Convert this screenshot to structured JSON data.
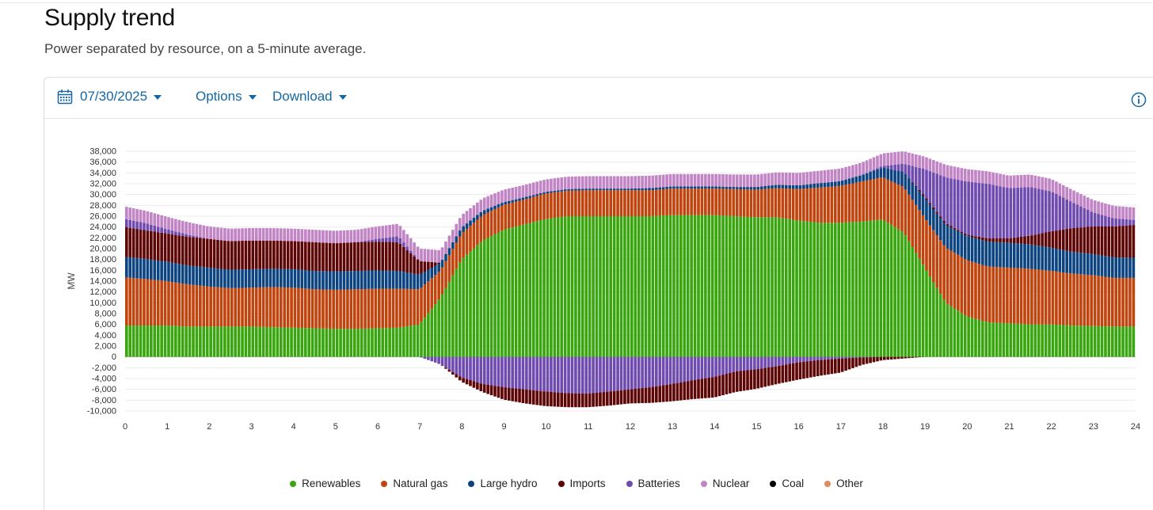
{
  "header": {
    "title": "Supply trend",
    "subtitle": "Power separated by resource, on a 5-minute average."
  },
  "toolbar": {
    "date": "07/30/2025",
    "options_label": "Options",
    "download_label": "Download",
    "calendar_icon": "calendar-icon",
    "info_icon": "info-icon",
    "accent": "#1367a6"
  },
  "chart_data": {
    "type": "bar",
    "stacked": true,
    "title": "",
    "xlabel": "",
    "ylabel": "MW",
    "xlim": [
      0,
      24
    ],
    "ylim": [
      -10000,
      38000
    ],
    "x_ticks": [
      "0",
      "1",
      "2",
      "3",
      "4",
      "5",
      "6",
      "7",
      "8",
      "9",
      "10",
      "11",
      "12",
      "13",
      "14",
      "15",
      "16",
      "17",
      "18",
      "19",
      "20",
      "21",
      "22",
      "23",
      "24"
    ],
    "y_ticks": [
      "-10,000",
      "-8,000",
      "-6,000",
      "-4,000",
      "-2,000",
      "0",
      "2,000",
      "4,000",
      "6,000",
      "8,000",
      "10,000",
      "12,000",
      "14,000",
      "16,000",
      "18,000",
      "20,000",
      "22,000",
      "24,000",
      "26,000",
      "28,000",
      "30,000",
      "32,000",
      "34,000",
      "36,000",
      "38,000"
    ],
    "grid": true,
    "legend_position": "bottom",
    "x": [
      0,
      0.5,
      1,
      1.5,
      2,
      2.5,
      3,
      3.5,
      4,
      4.5,
      5,
      5.5,
      6,
      6.5,
      7,
      7.5,
      8,
      8.5,
      9,
      9.5,
      10,
      10.5,
      11,
      11.5,
      12,
      12.5,
      13,
      13.5,
      14,
      14.5,
      15,
      15.5,
      16,
      16.5,
      17,
      17.5,
      18,
      18.5,
      19,
      19.5,
      20,
      20.5,
      21,
      21.5,
      22,
      22.5,
      23,
      23.5,
      24
    ],
    "series": [
      {
        "name": "Renewables",
        "color": "#3aa60f",
        "values": [
          5800,
          5800,
          5800,
          5600,
          5600,
          5600,
          5600,
          5500,
          5400,
          5300,
          5200,
          5200,
          5300,
          5400,
          6000,
          11000,
          18000,
          21500,
          23500,
          24500,
          25500,
          26000,
          26000,
          26000,
          26000,
          26000,
          26200,
          26200,
          26200,
          26000,
          25800,
          25800,
          25200,
          24800,
          24800,
          25000,
          25400,
          23000,
          16500,
          10000,
          7500,
          6400,
          6200,
          6000,
          6000,
          5800,
          5700,
          5600,
          5600
        ]
      },
      {
        "name": "Natural gas",
        "color": "#c0440d",
        "values": [
          8900,
          8600,
          8200,
          7800,
          7400,
          7100,
          7200,
          7400,
          7400,
          7200,
          7200,
          7300,
          7300,
          7200,
          6500,
          5000,
          4800,
          4700,
          4600,
          4600,
          4700,
          4700,
          4800,
          4800,
          4800,
          4800,
          4900,
          4900,
          4900,
          5000,
          5100,
          5400,
          5800,
          6500,
          6800,
          7400,
          7800,
          8400,
          9200,
          10200,
          10400,
          10300,
          10300,
          10300,
          9900,
          9600,
          9400,
          9000,
          9000
        ]
      },
      {
        "name": "Large hydro",
        "color": "#0b4480",
        "values": [
          3800,
          3700,
          3600,
          3500,
          3500,
          3400,
          3400,
          3400,
          3400,
          3400,
          3400,
          3400,
          3400,
          3300,
          2700,
          1400,
          1100,
          800,
          500,
          400,
          300,
          300,
          300,
          300,
          300,
          400,
          400,
          400,
          400,
          400,
          500,
          600,
          700,
          800,
          900,
          1200,
          1800,
          2800,
          3700,
          4200,
          4500,
          4600,
          4600,
          4500,
          4300,
          4000,
          3900,
          3800,
          3700
        ]
      },
      {
        "name": "Imports",
        "color": "#5e0505",
        "values": [
          5500,
          5300,
          5200,
          5300,
          5300,
          5300,
          5300,
          5200,
          5200,
          5300,
          5200,
          5300,
          5300,
          5300,
          2500,
          0,
          0,
          0,
          0,
          0,
          0,
          0,
          0,
          0,
          0,
          0,
          0,
          0,
          0,
          0,
          0,
          0,
          0,
          0,
          0,
          0,
          0,
          0,
          300,
          300,
          200,
          600,
          800,
          1600,
          3000,
          4400,
          5100,
          5700,
          6100
        ]
      },
      {
        "name": "Batteries",
        "color": "#6f4bb0",
        "values": [
          1500,
          1300,
          800,
          400,
          0,
          0,
          0,
          0,
          0,
          0,
          0,
          0,
          500,
          1100,
          0,
          0,
          0,
          0,
          0,
          0,
          0,
          0,
          0,
          0,
          0,
          0,
          0,
          0,
          0,
          0,
          0,
          0,
          0,
          0,
          0,
          0,
          300,
          1500,
          5000,
          8500,
          9800,
          10100,
          9300,
          9000,
          7400,
          4800,
          2600,
          1500,
          900
        ]
      },
      {
        "name": "Nuclear",
        "color": "#c184c4",
        "values": [
          2300,
          2300,
          2300,
          2300,
          2300,
          2300,
          2300,
          2300,
          2300,
          2300,
          2300,
          2300,
          2300,
          2300,
          2300,
          2300,
          2300,
          2300,
          2300,
          2300,
          2300,
          2300,
          2300,
          2300,
          2300,
          2300,
          2300,
          2300,
          2300,
          2300,
          2300,
          2300,
          2300,
          2300,
          2300,
          2300,
          2300,
          2300,
          2300,
          2300,
          2300,
          2300,
          2300,
          2300,
          2300,
          2300,
          2300,
          2300,
          2300
        ]
      },
      {
        "name": "Coal",
        "color": "#000000",
        "values": [
          0,
          0,
          0,
          0,
          0,
          0,
          0,
          0,
          0,
          0,
          0,
          0,
          0,
          0,
          0,
          0,
          0,
          0,
          0,
          0,
          0,
          0,
          0,
          0,
          0,
          0,
          0,
          0,
          0,
          0,
          0,
          0,
          0,
          0,
          0,
          0,
          0,
          0,
          0,
          0,
          0,
          0,
          0,
          0,
          0,
          0,
          0,
          0,
          0
        ]
      },
      {
        "name": "Other",
        "color": "#e08a5e",
        "values": [
          0,
          0,
          0,
          0,
          0,
          0,
          0,
          0,
          0,
          0,
          0,
          0,
          0,
          0,
          0,
          0,
          0,
          0,
          0,
          0,
          0,
          0,
          0,
          0,
          0,
          0,
          0,
          0,
          0,
          0,
          0,
          0,
          0,
          0,
          0,
          0,
          0,
          0,
          0,
          0,
          0,
          0,
          0,
          0,
          0,
          0,
          0,
          0,
          0
        ]
      }
    ],
    "negative_series": [
      {
        "name": "Batteries",
        "color": "#6f4bb0",
        "values": [
          0,
          0,
          0,
          0,
          0,
          0,
          0,
          0,
          0,
          0,
          0,
          0,
          0,
          0,
          0,
          -1400,
          -3800,
          -5000,
          -5600,
          -6000,
          -6400,
          -6700,
          -6800,
          -6400,
          -6000,
          -5600,
          -5000,
          -4300,
          -3700,
          -2700,
          -2300,
          -1700,
          -1000,
          -600,
          -300,
          -100,
          0,
          0,
          0,
          0,
          0,
          0,
          0,
          0,
          0,
          0,
          0,
          0,
          0
        ]
      },
      {
        "name": "Imports",
        "color": "#5e0505",
        "values": [
          0,
          0,
          0,
          0,
          0,
          0,
          0,
          0,
          0,
          0,
          0,
          0,
          0,
          0,
          0,
          0,
          -800,
          -1500,
          -2300,
          -2600,
          -2700,
          -2600,
          -2500,
          -2600,
          -2600,
          -2900,
          -3200,
          -3500,
          -3800,
          -3800,
          -3600,
          -3300,
          -3200,
          -2900,
          -2600,
          -1400,
          -600,
          -300,
          0,
          0,
          0,
          0,
          0,
          0,
          0,
          0,
          0,
          0,
          0
        ]
      }
    ]
  }
}
